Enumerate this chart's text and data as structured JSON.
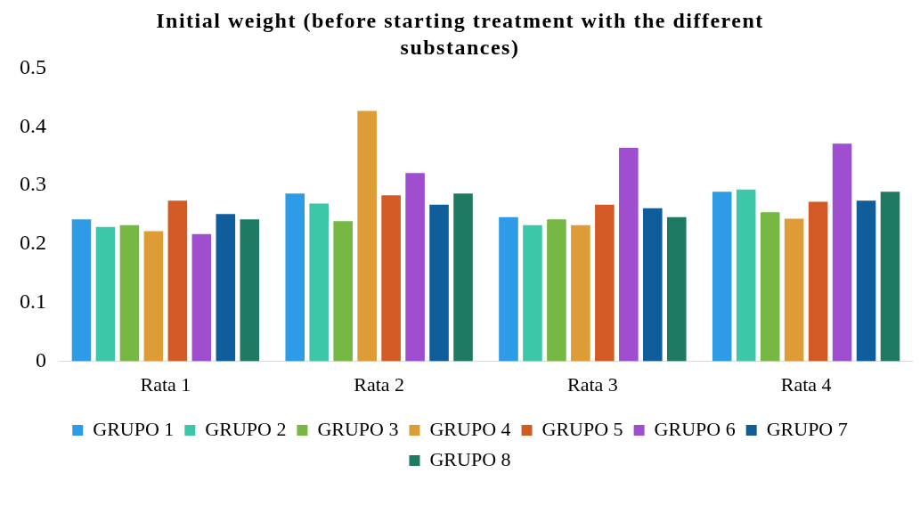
{
  "chart_data": {
    "type": "bar",
    "title": "Initial weight (before starting treatment with the different substances)",
    "categories": [
      "Rata 1",
      "Rata 2",
      "Rata 3",
      "Rata 4"
    ],
    "series": [
      {
        "name": "GRUPO 1",
        "color": "#2e9be6",
        "values": [
          0.242,
          0.286,
          0.246,
          0.289
        ]
      },
      {
        "name": "GRUPO 2",
        "color": "#3cc8a8",
        "values": [
          0.229,
          0.269,
          0.232,
          0.293
        ]
      },
      {
        "name": "GRUPO 3",
        "color": "#76b843",
        "values": [
          0.232,
          0.239,
          0.242,
          0.254
        ]
      },
      {
        "name": "GRUPO 4",
        "color": "#dd9c35",
        "values": [
          0.222,
          0.427,
          0.232,
          0.243
        ]
      },
      {
        "name": "GRUPO 5",
        "color": "#d35a24",
        "values": [
          0.274,
          0.283,
          0.267,
          0.272
        ]
      },
      {
        "name": "GRUPO 6",
        "color": "#a04ed0",
        "values": [
          0.217,
          0.321,
          0.364,
          0.371
        ]
      },
      {
        "name": "GRUPO 7",
        "color": "#0f5d9a",
        "values": [
          0.251,
          0.267,
          0.261,
          0.274
        ]
      },
      {
        "name": "GRUPO 8",
        "color": "#1e7a63",
        "values": [
          0.242,
          0.286,
          0.246,
          0.289
        ]
      }
    ],
    "ylim": [
      0,
      0.5
    ],
    "yticks": [
      0,
      0.1,
      0.2,
      0.3,
      0.4,
      0.5
    ],
    "grid": false,
    "legend": "bottom"
  }
}
